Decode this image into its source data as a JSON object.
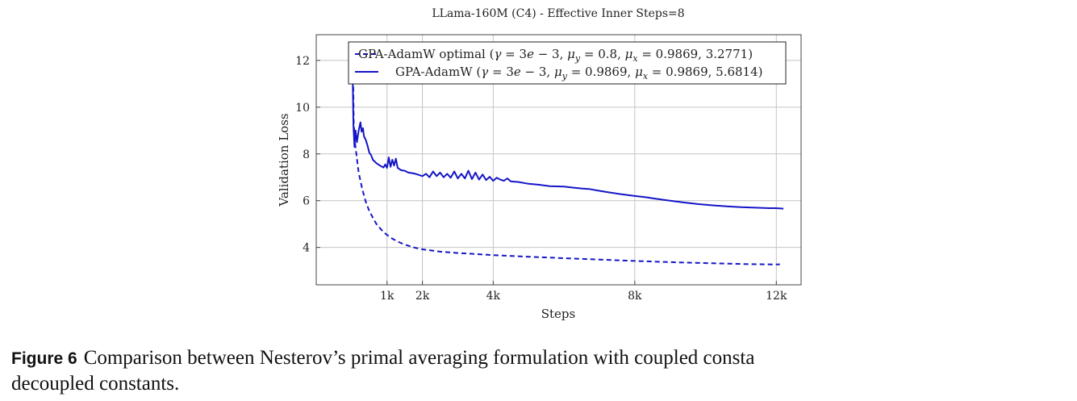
{
  "chart_data": {
    "type": "line",
    "title": "LLama-160M (C4) - Effective Inner Steps=8",
    "xlabel": "Steps",
    "ylabel": "Validation Loss",
    "xlim": [
      -1000,
      12700
    ],
    "ylim": [
      2.4,
      13.1
    ],
    "x_ticks": [
      {
        "value": 1000,
        "label": "1k"
      },
      {
        "value": 2000,
        "label": "2k"
      },
      {
        "value": 4000,
        "label": "4k"
      },
      {
        "value": 8000,
        "label": "8k"
      },
      {
        "value": 12000,
        "label": "12k"
      }
    ],
    "y_ticks": [
      {
        "value": 4,
        "label": "4"
      },
      {
        "value": 6,
        "label": "6"
      },
      {
        "value": 8,
        "label": "8"
      },
      {
        "value": 10,
        "label": "10"
      },
      {
        "value": 12,
        "label": "12"
      }
    ],
    "grid": true,
    "legend_position": "top",
    "series": [
      {
        "name": "GPA-AdamW optimal",
        "legend_label": "GPA-AdamW optimal (γ = 3e − 3, μ_y = 0.8, μ_x = 0.9869, 3.2771)",
        "style": "dashed",
        "color": "#1515c8",
        "x": [
          30,
          60,
          100,
          150,
          200,
          300,
          400,
          500,
          700,
          900,
          1100,
          1300,
          1500,
          1800,
          2000,
          2500,
          3000,
          3500,
          4000,
          5000,
          6000,
          7000,
          8000,
          9000,
          10000,
          11000,
          12000,
          12100
        ],
        "y": [
          12.6,
          9.3,
          8.4,
          7.8,
          7.2,
          6.5,
          5.95,
          5.55,
          5.0,
          4.65,
          4.42,
          4.25,
          4.12,
          3.98,
          3.92,
          3.82,
          3.76,
          3.72,
          3.67,
          3.6,
          3.54,
          3.48,
          3.42,
          3.37,
          3.33,
          3.29,
          3.27,
          3.277
        ]
      },
      {
        "name": "GPA-AdamW",
        "legend_label": "GPA-AdamW (γ = 3e − 3, μ_y = 0.9869, μ_x = 0.9869, 5.6814)",
        "style": "solid",
        "color": "#1515c8",
        "x": [
          20,
          50,
          80,
          110,
          150,
          200,
          250,
          280,
          320,
          350,
          400,
          450,
          500,
          550,
          600,
          700,
          800,
          900,
          950,
          1000,
          1050,
          1100,
          1150,
          1200,
          1250,
          1300,
          1400,
          1500,
          1600,
          1700,
          1800,
          1900,
          2000,
          2100,
          2200,
          2300,
          2400,
          2500,
          2600,
          2700,
          2800,
          2900,
          3000,
          3100,
          3200,
          3300,
          3400,
          3500,
          3600,
          3700,
          3800,
          3900,
          4000,
          4100,
          4200,
          4300,
          4400,
          4500,
          4700,
          5000,
          5300,
          5600,
          6000,
          6300,
          6500,
          6700,
          7000,
          7300,
          7600,
          8000,
          8300,
          8600,
          9000,
          9400,
          9800,
          10200,
          10600,
          11000,
          11400,
          11800,
          12000,
          12200
        ],
        "y": [
          12.5,
          9.2,
          8.3,
          9.0,
          8.5,
          9.0,
          9.35,
          8.95,
          9.1,
          8.75,
          8.6,
          8.35,
          8.05,
          7.95,
          7.75,
          7.6,
          7.5,
          7.42,
          7.55,
          7.4,
          7.85,
          7.45,
          7.75,
          7.5,
          7.8,
          7.4,
          7.3,
          7.28,
          7.2,
          7.18,
          7.15,
          7.1,
          7.05,
          7.15,
          7.0,
          7.25,
          7.05,
          7.2,
          7.0,
          7.15,
          6.98,
          7.25,
          6.95,
          7.15,
          6.95,
          7.28,
          6.92,
          7.2,
          6.9,
          7.12,
          6.88,
          7.02,
          6.85,
          6.98,
          6.9,
          6.85,
          6.95,
          6.82,
          6.8,
          6.72,
          6.68,
          6.62,
          6.6,
          6.55,
          6.52,
          6.5,
          6.42,
          6.35,
          6.28,
          6.2,
          6.15,
          6.08,
          6.0,
          5.92,
          5.85,
          5.8,
          5.76,
          5.72,
          5.7,
          5.68,
          5.68,
          5.66
        ]
      }
    ]
  },
  "caption": {
    "label": "Figure 6",
    "text": "Comparison between Nesterov’s primal averaging formulation with coupled consta",
    "text_cont": "decoupled constants."
  }
}
